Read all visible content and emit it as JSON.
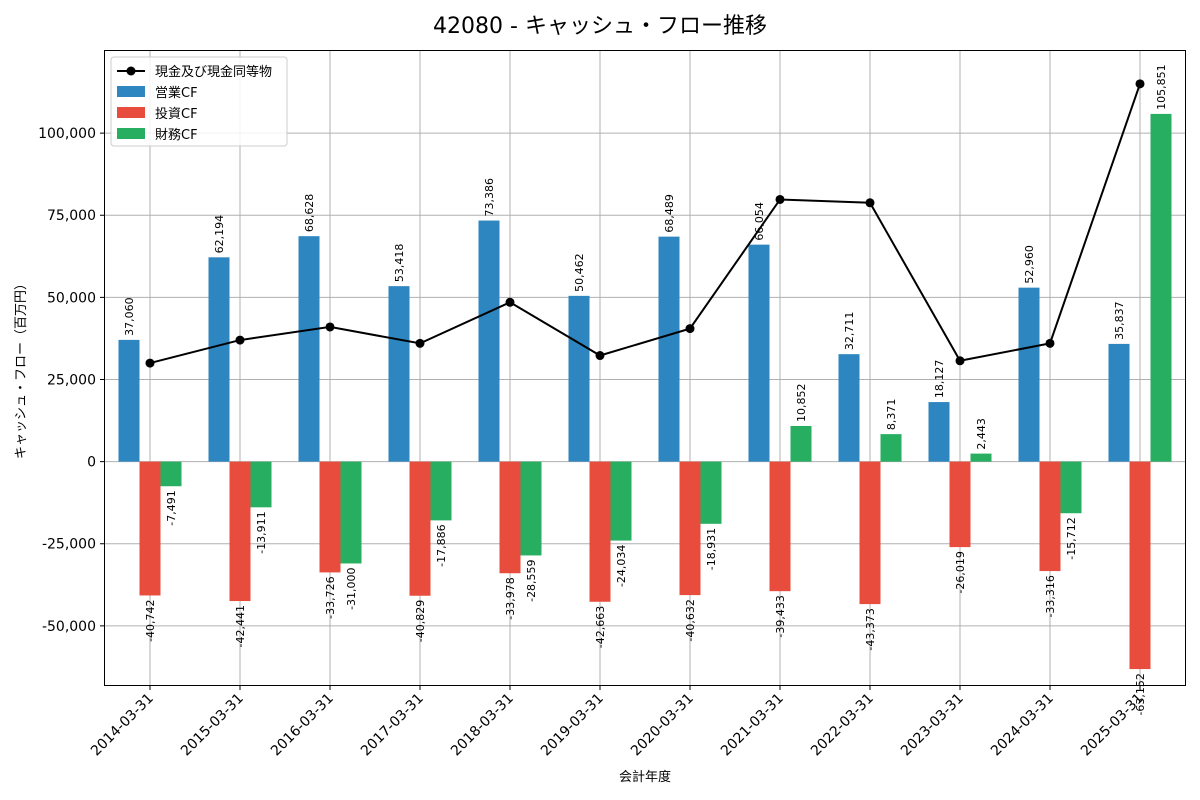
{
  "chart_data": {
    "type": "bar",
    "title": "42080 - キャッシュ・フロー推移",
    "xlabel": "会計年度",
    "ylabel": "キャッシュ・フロー（百万円）",
    "ylim": [
      -68000,
      125000
    ],
    "yticks": [
      -50000,
      -25000,
      0,
      25000,
      50000,
      75000,
      100000
    ],
    "ytick_labels": [
      "-50,000",
      "-25,000",
      "0",
      "25,000",
      "50,000",
      "75,000",
      "100,000"
    ],
    "grid": true,
    "legend_position": "top-left",
    "categories": [
      "2014-03-31",
      "2015-03-31",
      "2016-03-31",
      "2017-03-31",
      "2018-03-31",
      "2019-03-31",
      "2020-03-31",
      "2021-03-31",
      "2022-03-31",
      "2023-03-31",
      "2024-03-31",
      "2025-03-31"
    ],
    "series": [
      {
        "name": "営業CF",
        "kind": "bar",
        "color": "#2e86c1",
        "values": [
          37060,
          62194,
          68628,
          53418,
          73386,
          50462,
          68489,
          66054,
          32711,
          18127,
          52960,
          35837
        ],
        "labels": [
          "37,060",
          "62,194",
          "68,628",
          "53,418",
          "73,386",
          "50,462",
          "68,489",
          "66,054",
          "32,711",
          "18,127",
          "52,960",
          "35,837"
        ]
      },
      {
        "name": "投資CF",
        "kind": "bar",
        "color": "#e74c3c",
        "values": [
          -40742,
          -42441,
          -33726,
          -40829,
          -33978,
          -42663,
          -40632,
          -39433,
          -43373,
          -26019,
          -33316,
          -63152
        ],
        "labels": [
          "-40,742",
          "-42,441",
          "-33,726",
          "-40,829",
          "-33,978",
          "-42,663",
          "-40,632",
          "-39,433",
          "-43,373",
          "-26,019",
          "-33,316",
          "-63,152"
        ]
      },
      {
        "name": "財務CF",
        "kind": "bar",
        "color": "#27ae60",
        "values": [
          -7491,
          -13911,
          -31000,
          -17886,
          -28559,
          -24034,
          -18931,
          10852,
          8371,
          2443,
          -15712,
          105851
        ],
        "labels": [
          "-7,491",
          "-13,911",
          "-31,000",
          "-17,886",
          "-28,559",
          "-24,034",
          "-18,931",
          "10,852",
          "8,371",
          "2,443",
          "-15,712",
          "105,851"
        ]
      },
      {
        "name": "現金及び現金同等物",
        "kind": "line",
        "color": "#000000",
        "values": [
          30000,
          37000,
          41000,
          36000,
          48500,
          32300,
          40500,
          79800,
          78800,
          30700,
          36000,
          115000
        ]
      }
    ]
  }
}
